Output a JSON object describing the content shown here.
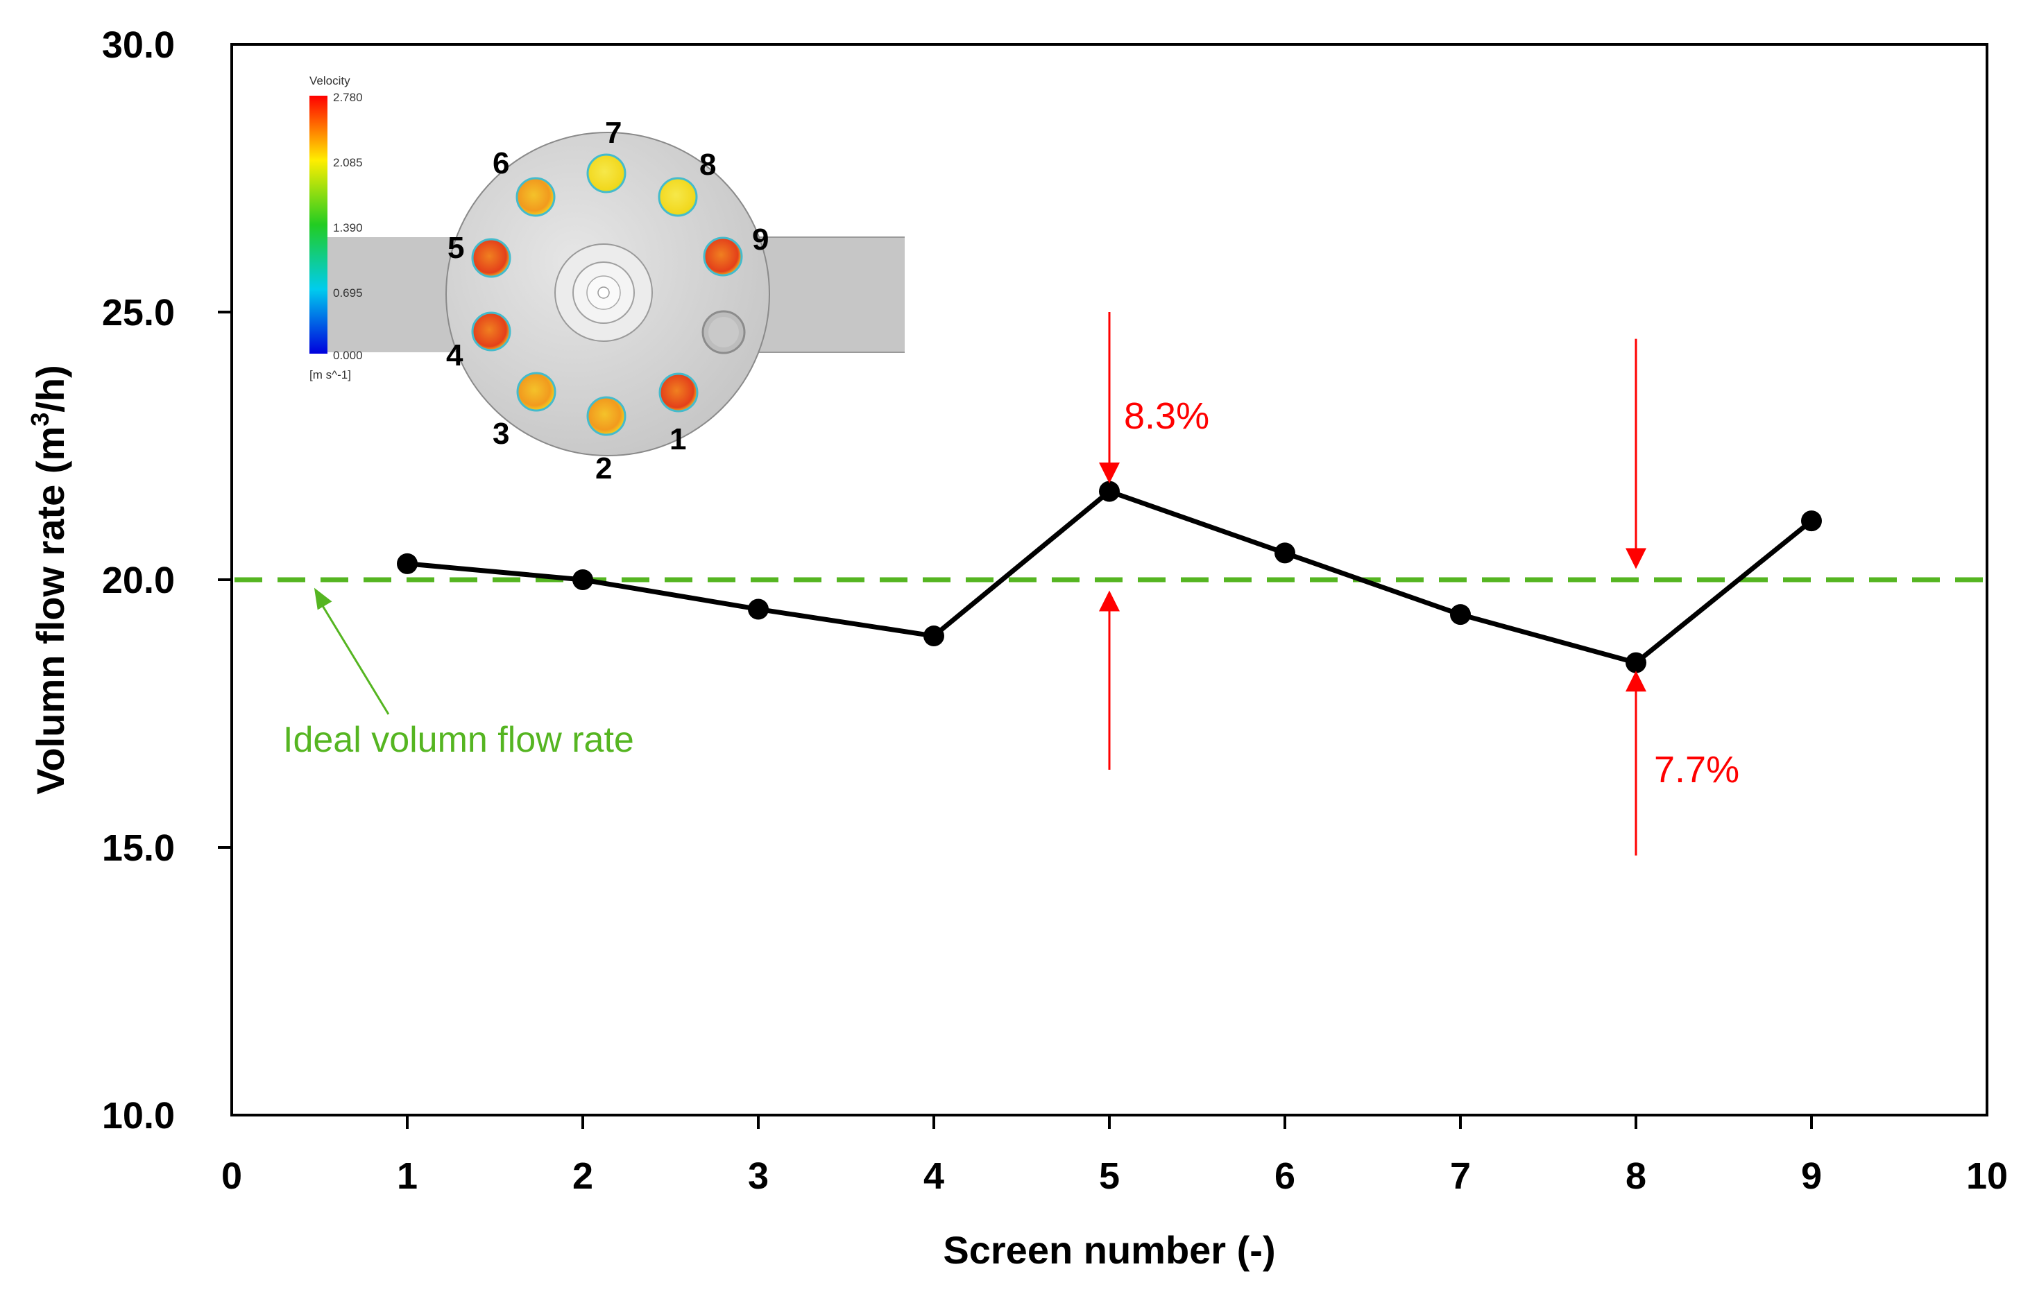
{
  "chart_data": {
    "type": "line",
    "xlabel": "Screen number (-)",
    "ylabel_main": "Volumn flow rate (m",
    "ylabel_sup": "3",
    "ylabel_tail": "/h)",
    "xlim": [
      0,
      10
    ],
    "ylim": [
      10,
      30
    ],
    "x_ticks": [
      0,
      1,
      2,
      3,
      4,
      5,
      6,
      7,
      8,
      9,
      10
    ],
    "y_ticks": [
      {
        "value": 10,
        "label": "10.0"
      },
      {
        "value": 15,
        "label": "15.0"
      },
      {
        "value": 20,
        "label": "20.0"
      },
      {
        "value": 25,
        "label": "25.0"
      },
      {
        "value": 30,
        "label": "30.0"
      }
    ],
    "grid": false,
    "series": [
      {
        "x": [
          1,
          2,
          3,
          4,
          5,
          6,
          7,
          8,
          9
        ],
        "y": [
          20.3,
          20.0,
          19.45,
          18.95,
          21.65,
          20.5,
          19.35,
          18.45,
          21.1
        ],
        "color": "#000000"
      }
    ],
    "reference_line": {
      "y": 20.0,
      "label": "Ideal volumn flow rate",
      "color": "#55b521",
      "style": "dashed",
      "arrow_tip": {
        "x": 0.47,
        "y": 19.85
      }
    },
    "annotations": [
      {
        "text": "8.3%",
        "x": 5,
        "color": "#ff0000",
        "down_arrow": {
          "from": 25.0,
          "to": 21.8
        },
        "up_arrow": {
          "from": 16.45,
          "to": 19.8
        }
      },
      {
        "text": "7.7%",
        "x": 8,
        "color": "#ff0000",
        "down_arrow": {
          "from": 24.5,
          "to": 20.2
        },
        "up_arrow": {
          "from": 14.85,
          "to": 18.3
        }
      }
    ]
  },
  "inset": {
    "legend_title": "Velocity",
    "legend_values": [
      "2.780",
      "2.085",
      "1.390",
      "0.695",
      "0.000"
    ],
    "legend_unit": "[m s^-1]",
    "screen_labels": [
      "1",
      "2",
      "3",
      "4",
      "5",
      "6",
      "7",
      "8",
      "9"
    ],
    "colors": {
      "housing": "#d3d3d3",
      "pipe": "#c8c8c8",
      "hot": "#e8441c",
      "warm": "#f3a41c",
      "cool": "#f2e81f"
    }
  }
}
